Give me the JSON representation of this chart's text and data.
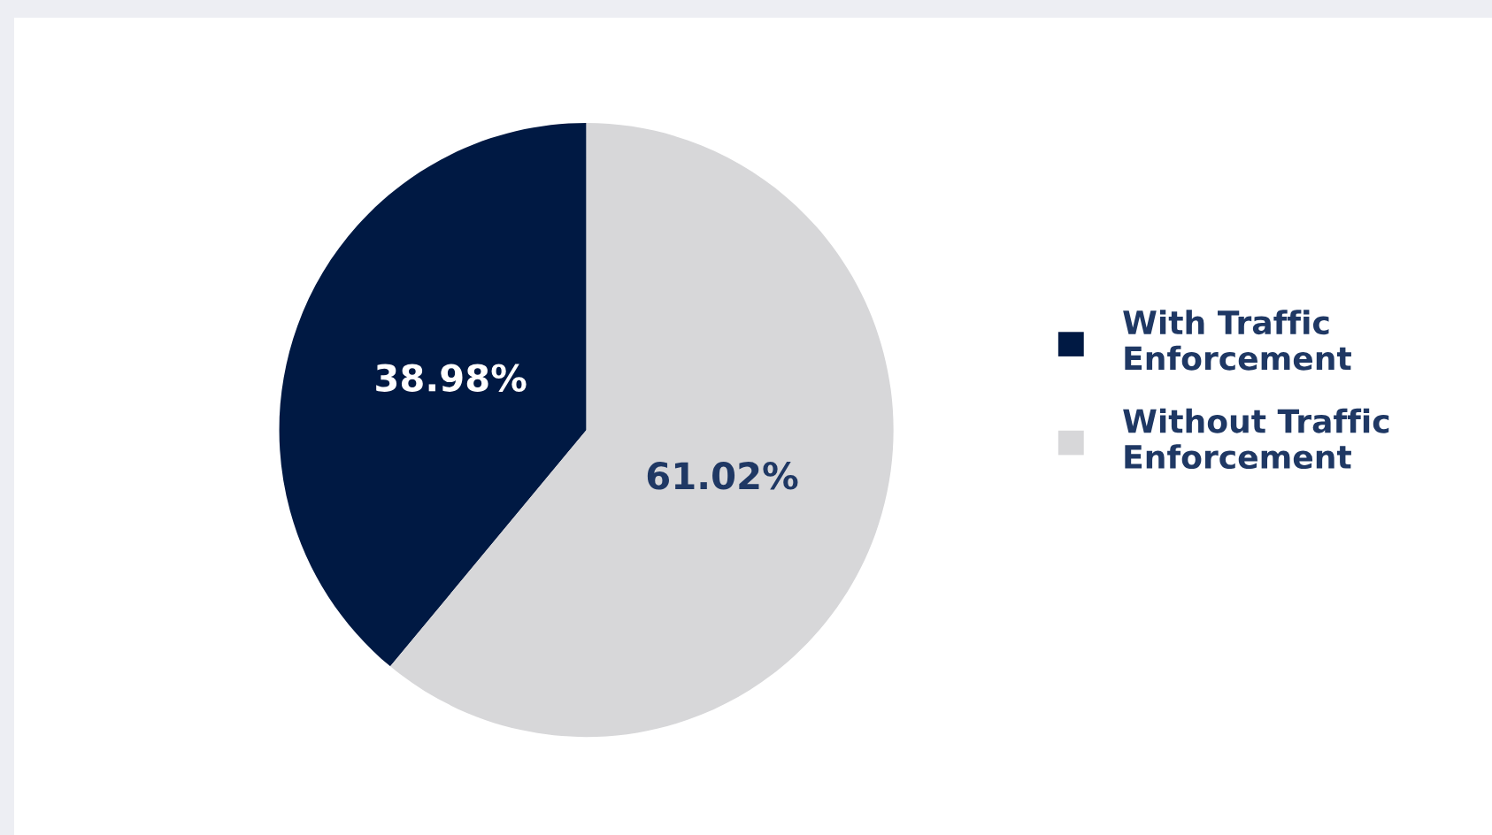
{
  "chart_data": {
    "type": "pie",
    "categories": [
      "With Traffic Enforcement",
      "Without Traffic Enforcement"
    ],
    "values": [
      38.98,
      61.02
    ],
    "colors": [
      "#001943",
      "#d7d7d9"
    ],
    "value_labels": [
      "38.98%",
      "61.02%"
    ],
    "legend": "right"
  }
}
